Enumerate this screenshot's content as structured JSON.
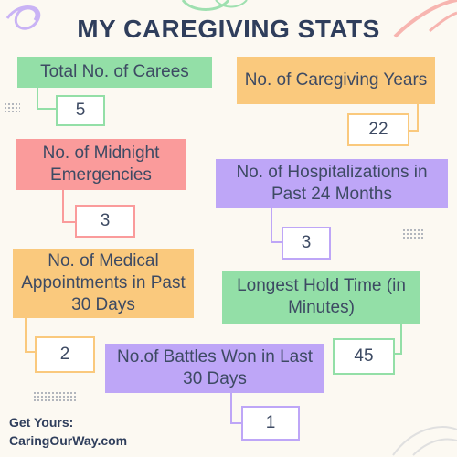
{
  "title": "MY CAREGIVING STATS",
  "stats": [
    {
      "label": "Total No. of Carees",
      "value": "5"
    },
    {
      "label": "No. of Caregiving Years",
      "value": "22"
    },
    {
      "label": "No. of Midnight Emergencies",
      "value": "3"
    },
    {
      "label": "No. of Hospitalizations in Past 24 Months",
      "value": "3"
    },
    {
      "label": "No. of Medical Appointments in Past 30 Days",
      "value": "2"
    },
    {
      "label": "Longest Hold Time (in Minutes)",
      "value": "45"
    },
    {
      "label": "No.of Battles Won in Last 30 Days",
      "value": "1"
    }
  ],
  "footer": {
    "line1": "Get Yours:",
    "line2": "CaringOurWay.com"
  },
  "colors": {
    "green": "#93dfa7",
    "orange": "#fac97d",
    "red": "#fa9b9b",
    "purple": "#bea6f7",
    "text": "#2f3e5c",
    "background": "#fcf9f2"
  }
}
